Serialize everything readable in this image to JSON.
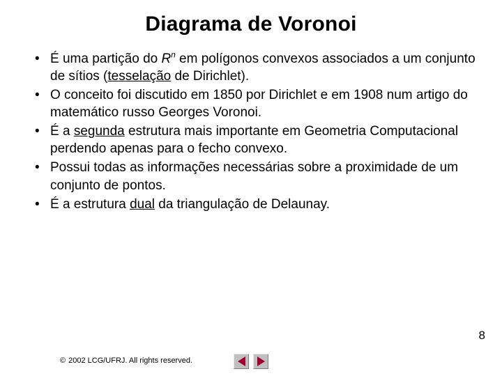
{
  "title": "Diagrama de Voronoi",
  "bullets": [
    {
      "pre": "É uma partição do ",
      "italic": "R",
      "sup": "n",
      "post": " em polígonos convexos associados a um conjunto de sítios (",
      "u1": "tesselação",
      "post2": " de Dirichlet)."
    },
    {
      "text": "O conceito foi discutido em 1850 por Dirichlet e em 1908 num artigo do matemático russo Georges Voronoi."
    },
    {
      "pre": "É a ",
      "u1": "segunda",
      "post": " estrutura mais importante em Geometria Computacional perdendo apenas para o fecho convexo."
    },
    {
      "text": "Possui todas as informações necessárias sobre a proximidade de um conjunto de pontos."
    },
    {
      "pre": "É a estrutura ",
      "u1": "dual",
      "post": " da triangulação de Delaunay."
    }
  ],
  "pageNumber": "8",
  "footer": {
    "symbol": "©",
    "text": "2002 LCG/UFRJ. All rights reserved."
  },
  "nav": {
    "prev": "prev-slide",
    "next": "next-slide"
  },
  "colors": {
    "navTriangle": "#a00030",
    "navBg": "#c0c0c0",
    "textColor": "#000000",
    "background": "#ffffff"
  }
}
